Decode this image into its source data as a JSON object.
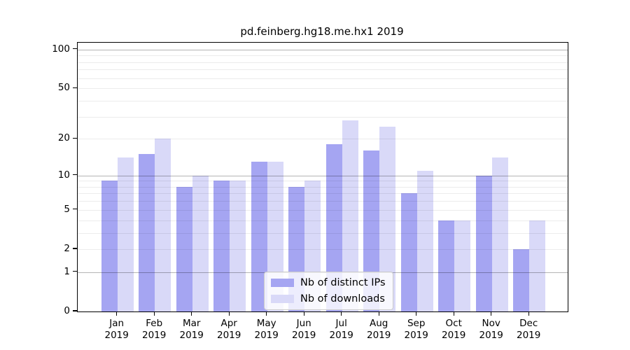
{
  "chart_data": {
    "type": "bar",
    "title": "pd.feinberg.hg18.me.hx1 2019",
    "categories": [
      "Jan",
      "Feb",
      "Mar",
      "Apr",
      "May",
      "Jun",
      "Jul",
      "Aug",
      "Sep",
      "Oct",
      "Nov",
      "Dec"
    ],
    "x_year_label": "2019",
    "series": [
      {
        "name": "Nb of distinct IPs",
        "color": "#a5a5f2",
        "values": [
          9,
          15,
          8,
          9,
          13,
          8,
          18,
          16,
          7,
          4,
          10,
          2
        ]
      },
      {
        "name": "Nb of downloads",
        "color": "#d9d9f8",
        "values": [
          14,
          20,
          10,
          9,
          13,
          9,
          28,
          25,
          11,
          4,
          14,
          4
        ]
      }
    ],
    "y_axis": {
      "scale": "log1p",
      "tick_values": [
        0,
        1,
        2,
        5,
        10,
        20,
        50,
        100
      ],
      "major_gridlines": [
        1,
        10,
        100
      ],
      "minor_gridlines": [
        2,
        3,
        4,
        5,
        6,
        7,
        8,
        9,
        20,
        30,
        40,
        50,
        60,
        70,
        80,
        90
      ],
      "ylim": [
        0,
        113
      ]
    },
    "grid": "on",
    "legend_position": "lower center"
  }
}
